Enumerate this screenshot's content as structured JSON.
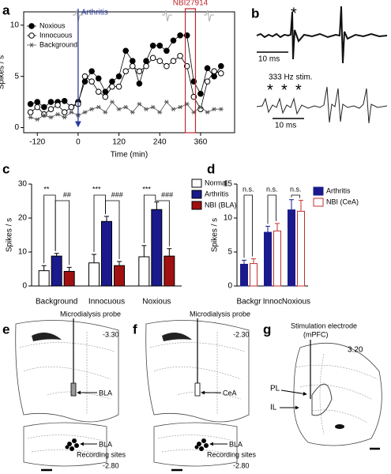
{
  "chart_data": [
    {
      "type": "line",
      "label": "a",
      "xlabel": "Time (min)",
      "ylabel": "Spikes / s",
      "x": [
        -140,
        -120,
        -100,
        -80,
        -60,
        -40,
        -20,
        0,
        20,
        40,
        60,
        80,
        100,
        120,
        140,
        160,
        180,
        200,
        220,
        240,
        260,
        280,
        300,
        320,
        340,
        360,
        380,
        400,
        420
      ],
      "series": [
        {
          "name": "Noxious",
          "color": "#000000",
          "marker": "filled",
          "values": [
            2.3,
            2.5,
            2.0,
            2.5,
            2.5,
            2.6,
            2.0,
            2.5,
            4.5,
            5.5,
            4.8,
            3.5,
            4.5,
            5.0,
            7.5,
            6.5,
            4.3,
            6.5,
            8.0,
            8.0,
            7.5,
            8.5,
            9.0,
            9.0,
            4.5,
            3.3,
            5.8,
            5.0,
            6.0
          ]
        },
        {
          "name": "Innocuous",
          "color": "#000000",
          "marker": "open",
          "values": [
            1.5,
            2.0,
            1.3,
            1.8,
            2.2,
            1.5,
            2.0,
            2.3,
            5.0,
            4.5,
            3.5,
            3.0,
            4.0,
            4.0,
            5.5,
            6.0,
            5.5,
            6.0,
            6.8,
            6.5,
            6.0,
            6.5,
            7.0,
            6.0,
            3.0,
            1.8,
            4.5,
            5.5,
            5.3
          ]
        },
        {
          "name": "Background",
          "color": "#555555",
          "marker": "star",
          "values": [
            1.0,
            0.8,
            1.2,
            1.0,
            1.3,
            1.0,
            1.5,
            1.2,
            1.5,
            1.8,
            2.0,
            1.5,
            2.5,
            1.8,
            2.0,
            1.5,
            2.3,
            1.8,
            2.0,
            1.5,
            2.5,
            1.8,
            2.0,
            2.3,
            1.5,
            2.0,
            1.5,
            1.8,
            1.8
          ]
        }
      ],
      "xlim": [
        -160,
        460
      ],
      "xticks": [
        -120,
        0,
        120,
        240,
        360
      ],
      "ylim": [
        -0.5,
        11.3
      ],
      "yticks": [
        0,
        5,
        10
      ],
      "annotations": [
        {
          "text": "Arthritis",
          "x": 0,
          "color": "#2a3c9c"
        },
        {
          "text": "NBI27914",
          "x": [
            315,
            345
          ],
          "color": "#c0282e"
        }
      ]
    },
    {
      "type": "bar",
      "label": "c",
      "ylabel": "Spikes / s",
      "categories": [
        "Background",
        "Innocuous",
        "Noxious"
      ],
      "series": [
        {
          "name": "Normal",
          "color": "#000000",
          "fill": "#ffffff",
          "values": [
            4.5,
            6.8,
            8.6
          ],
          "errors": [
            1.5,
            2.5,
            3.3
          ]
        },
        {
          "name": "Arthritis",
          "color": "#000000",
          "fill": "#1a1a8c",
          "values": [
            8.8,
            19,
            22.5
          ],
          "errors": [
            0.8,
            1.5,
            2.2
          ]
        },
        {
          "name": "NBI (BLA)",
          "color": "#000000",
          "fill": "#a01010",
          "values": [
            4.3,
            6,
            8.8
          ],
          "errors": [
            1.2,
            1.2,
            2.2
          ]
        }
      ],
      "significance": [
        [
          "**",
          "##"
        ],
        [
          "***",
          "###"
        ],
        [
          "***",
          "###"
        ]
      ],
      "ylim": [
        0,
        30
      ],
      "yticks": [
        0,
        10,
        20,
        30
      ]
    },
    {
      "type": "bar",
      "label": "d",
      "ylabel": "Spikes / s",
      "categories": [
        "Backgr",
        "Innoc",
        "Noxious"
      ],
      "series": [
        {
          "name": "Arthritis",
          "color": "#1a1a8c",
          "fill": "#1a1a8c",
          "values": [
            3.2,
            7.9,
            11.2
          ],
          "errors": [
            0.6,
            0.9,
            1.5
          ]
        },
        {
          "name": "NBI (CeA)",
          "color": "#c03030",
          "fill": "#ffffff",
          "values": [
            3.3,
            8.1,
            11.0
          ],
          "errors": [
            0.7,
            1.1,
            1.6
          ]
        }
      ],
      "significance": [
        [
          "n.s."
        ],
        [
          "n.s."
        ],
        [
          "n.s."
        ]
      ],
      "ylim": [
        0,
        15
      ],
      "yticks": [
        0,
        5,
        10,
        15
      ]
    }
  ],
  "panel_b": {
    "label": "b",
    "asterisk": "*",
    "scale_top": "10 ms",
    "stim": "333 Hz stim.",
    "stim_asterisks": [
      "*",
      "*",
      "*"
    ],
    "scale_bottom": "10 ms"
  },
  "panel_e": {
    "label": "e",
    "probe": "Microdialysis probe",
    "level_top": "-3.30",
    "target": "BLA",
    "site": "BLA",
    "sites": "Recording sites",
    "level_bottom": "-2.80"
  },
  "panel_f": {
    "label": "f",
    "probe": "Microdialysis probe",
    "level_top": "-2.30",
    "target": "CeA",
    "site": "BLA",
    "sites": "Recording sites",
    "level_bottom": "-2.80"
  },
  "panel_g": {
    "label": "g",
    "electrode": [
      "Stimulation electrode",
      "(mPFC)"
    ],
    "level": "3.20",
    "pl": "PL",
    "il": "IL"
  }
}
